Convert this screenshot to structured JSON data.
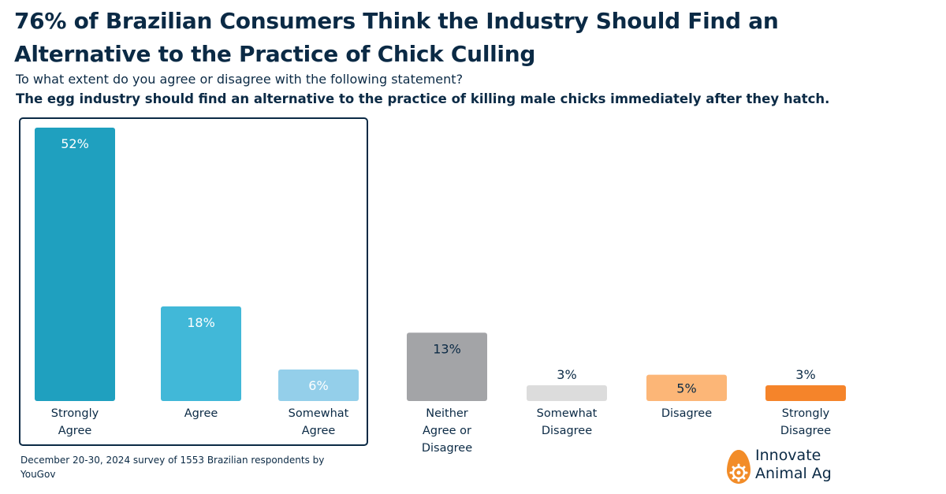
{
  "title": "76% of Brazilian Consumers Think the Industry Should Find an Alternative to the Practice of Chick Culling",
  "subtitle": "To what extent do you agree or disagree with the following statement?",
  "statement": "The egg industry should find an alternative to the practice of killing male chicks immediately after they hatch.",
  "footnote": "December 20-30, 2024 survey of 1553 Brazilian respondents by YouGov",
  "logo": {
    "line1": "Innovate",
    "line2": "Animal Ag",
    "icon": "egg-gear-icon",
    "color": "#f28c28"
  },
  "chart_data": {
    "type": "bar",
    "categories": [
      [
        "Strongly",
        "Agree"
      ],
      [
        "Agree"
      ],
      [
        "Somewhat",
        "Agree"
      ],
      [
        "Neither",
        "Agree or",
        "Disagree"
      ],
      [
        "Somewhat",
        "Disagree"
      ],
      [
        "Disagree"
      ],
      [
        "Strongly",
        "Disagree"
      ]
    ],
    "values": [
      52,
      18,
      6,
      13,
      3,
      5,
      3
    ],
    "value_labels": [
      "52%",
      "18%",
      "6%",
      "13%",
      "3%",
      "5%",
      "3%"
    ],
    "colors": [
      "#1fa0bf",
      "#41b8d8",
      "#94cfea",
      "#a3a4a7",
      "#dcdcdc",
      "#fcb677",
      "#f5842a"
    ],
    "highlight_box": {
      "categories": [
        "Strongly Agree",
        "Agree",
        "Somewhat Agree"
      ],
      "border_color": "#0b2a45"
    },
    "ylim": [
      0,
      52
    ],
    "xlabel": "",
    "ylabel": "",
    "grid": false
  }
}
